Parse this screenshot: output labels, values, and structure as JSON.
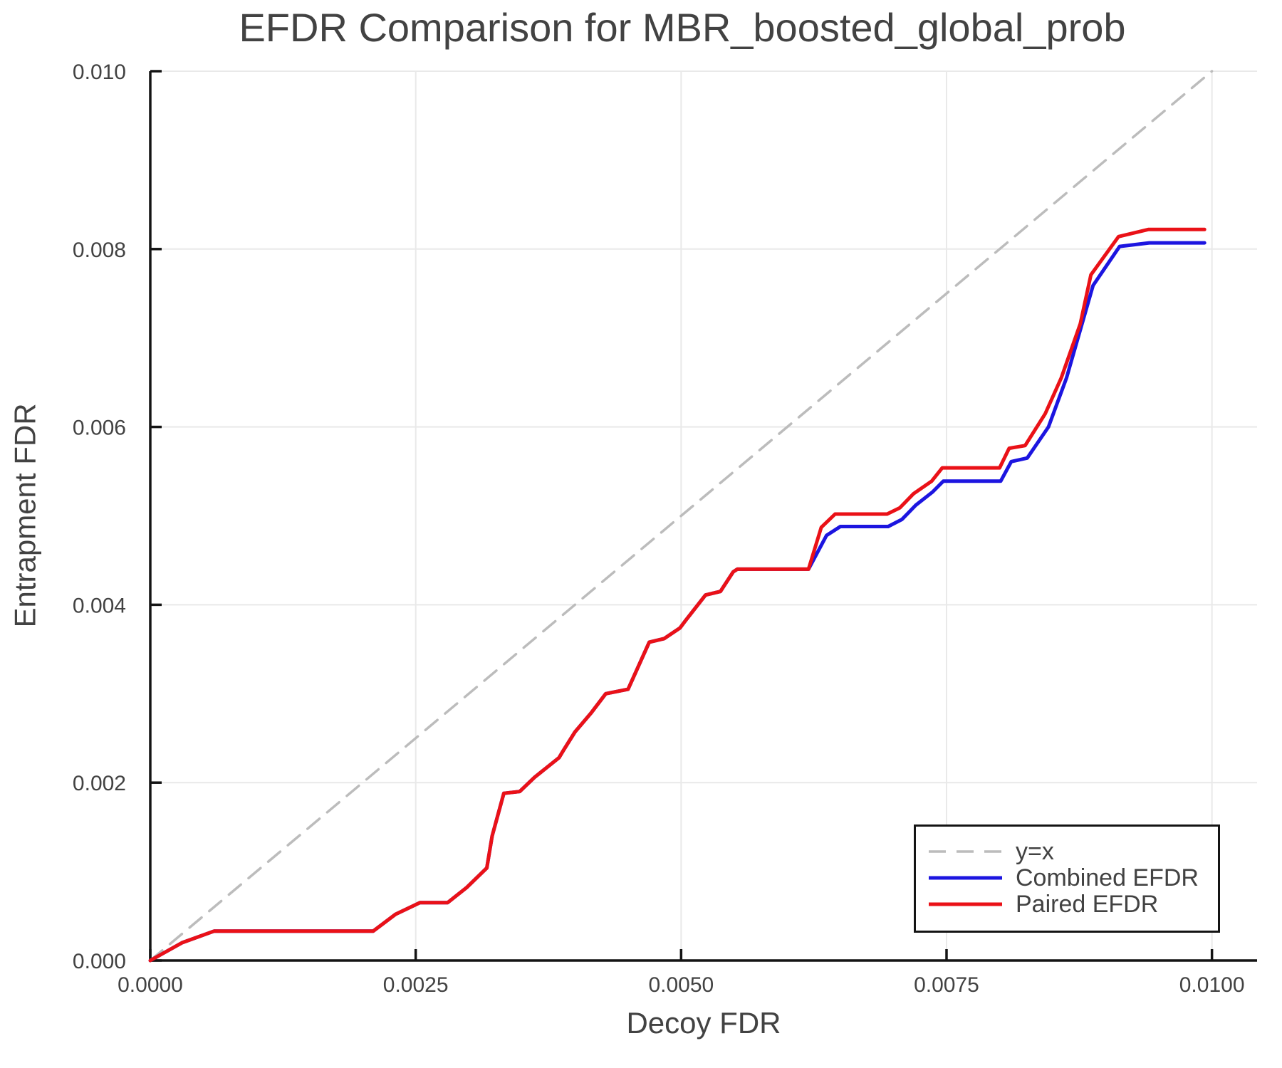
{
  "figure": {
    "background": "#ffffff",
    "text_color": "#424242",
    "spine_color": "#141414",
    "grid_color": "#e9e9e9"
  },
  "chart_data": {
    "type": "line",
    "title": "EFDR Comparison for MBR_boosted_global_prob",
    "xlabel": "Decoy FDR",
    "ylabel": "Entrapment FDR",
    "xlim": [
      0,
      0.010425
    ],
    "ylim": [
      0,
      0.01
    ],
    "grid": true,
    "legend": {
      "position": "lower right",
      "entries": [
        {
          "label": "y=x"
        },
        {
          "label": "Combined EFDR"
        },
        {
          "label": "Paired EFDR"
        }
      ]
    },
    "xticks": {
      "values": [
        0,
        0.0025,
        0.005,
        0.0075,
        0.01
      ],
      "labels": [
        "0.0000",
        "0.0025",
        "0.0050",
        "0.0075",
        "0.0100"
      ]
    },
    "yticks": {
      "values": [
        0,
        0.002,
        0.004,
        0.006,
        0.008,
        0.01
      ],
      "labels": [
        "0.000",
        "0.002",
        "0.004",
        "0.006",
        "0.008",
        "0.010"
      ]
    },
    "series": [
      {
        "name": "y=x",
        "style": "dashed",
        "color": "#bcbcbc",
        "width": 3.5,
        "points": [
          [
            0,
            0
          ],
          [
            0.01,
            0.01
          ]
        ]
      },
      {
        "name": "Combined EFDR",
        "style": "solid",
        "color": "#1c15e0",
        "width": 5,
        "points": [
          [
            0,
            0
          ],
          [
            0.0003,
            0.0002
          ],
          [
            0.0006,
            0.00033
          ],
          [
            0.0021,
            0.00033
          ],
          [
            0.00231,
            0.00052
          ],
          [
            0.00254,
            0.00065
          ],
          [
            0.0028,
            0.00065
          ],
          [
            0.00298,
            0.00082
          ],
          [
            0.00317,
            0.00104
          ],
          [
            0.00322,
            0.0014
          ],
          [
            0.00333,
            0.00188
          ],
          [
            0.00348,
            0.0019
          ],
          [
            0.00362,
            0.00206
          ],
          [
            0.00385,
            0.00228
          ],
          [
            0.00389,
            0.00236
          ],
          [
            0.004,
            0.00257
          ],
          [
            0.00415,
            0.00278
          ],
          [
            0.00429,
            0.003
          ],
          [
            0.0045,
            0.00305
          ],
          [
            0.0047,
            0.00358
          ],
          [
            0.00484,
            0.00362
          ],
          [
            0.00499,
            0.00374
          ],
          [
            0.00504,
            0.00382
          ],
          [
            0.00523,
            0.00411
          ],
          [
            0.00537,
            0.00415
          ],
          [
            0.00549,
            0.00437
          ],
          [
            0.00553,
            0.0044
          ],
          [
            0.0062,
            0.0044
          ],
          [
            0.00637,
            0.00478
          ],
          [
            0.0065,
            0.00488
          ],
          [
            0.00695,
            0.00488
          ],
          [
            0.00708,
            0.00496
          ],
          [
            0.00721,
            0.00512
          ],
          [
            0.00737,
            0.00527
          ],
          [
            0.00747,
            0.00539
          ],
          [
            0.00801,
            0.00539
          ],
          [
            0.00811,
            0.00561
          ],
          [
            0.00826,
            0.00565
          ],
          [
            0.00846,
            0.006
          ],
          [
            0.00863,
            0.00655
          ],
          [
            0.00888,
            0.00759
          ],
          [
            0.00913,
            0.00803
          ],
          [
            0.00941,
            0.00807
          ],
          [
            0.00993,
            0.00807
          ]
        ]
      },
      {
        "name": "Paired EFDR",
        "style": "solid",
        "color": "#ea1117",
        "width": 5,
        "points": [
          [
            0,
            0
          ],
          [
            0.0003,
            0.0002
          ],
          [
            0.0006,
            0.00033
          ],
          [
            0.0021,
            0.00033
          ],
          [
            0.00231,
            0.00052
          ],
          [
            0.00254,
            0.00065
          ],
          [
            0.0028,
            0.00065
          ],
          [
            0.00298,
            0.00082
          ],
          [
            0.00317,
            0.00104
          ],
          [
            0.00322,
            0.0014
          ],
          [
            0.00333,
            0.00188
          ],
          [
            0.00348,
            0.0019
          ],
          [
            0.00362,
            0.00206
          ],
          [
            0.00385,
            0.00228
          ],
          [
            0.00389,
            0.00236
          ],
          [
            0.004,
            0.00257
          ],
          [
            0.00415,
            0.00278
          ],
          [
            0.00429,
            0.003
          ],
          [
            0.0045,
            0.00305
          ],
          [
            0.0047,
            0.00358
          ],
          [
            0.00484,
            0.00362
          ],
          [
            0.00499,
            0.00374
          ],
          [
            0.00504,
            0.00382
          ],
          [
            0.00523,
            0.00411
          ],
          [
            0.00537,
            0.00415
          ],
          [
            0.00549,
            0.00437
          ],
          [
            0.00553,
            0.0044
          ],
          [
            0.0062,
            0.0044
          ],
          [
            0.00632,
            0.00487
          ],
          [
            0.00645,
            0.00502
          ],
          [
            0.00694,
            0.00502
          ],
          [
            0.00706,
            0.00509
          ],
          [
            0.00719,
            0.00525
          ],
          [
            0.00736,
            0.00539
          ],
          [
            0.00746,
            0.00554
          ],
          [
            0.008,
            0.00554
          ],
          [
            0.00809,
            0.00576
          ],
          [
            0.00824,
            0.00579
          ],
          [
            0.00843,
            0.00615
          ],
          [
            0.00858,
            0.00655
          ],
          [
            0.00876,
            0.00716
          ],
          [
            0.00886,
            0.00771
          ],
          [
            0.00912,
            0.00814
          ],
          [
            0.0094,
            0.00822
          ],
          [
            0.00993,
            0.00822
          ]
        ]
      }
    ]
  }
}
